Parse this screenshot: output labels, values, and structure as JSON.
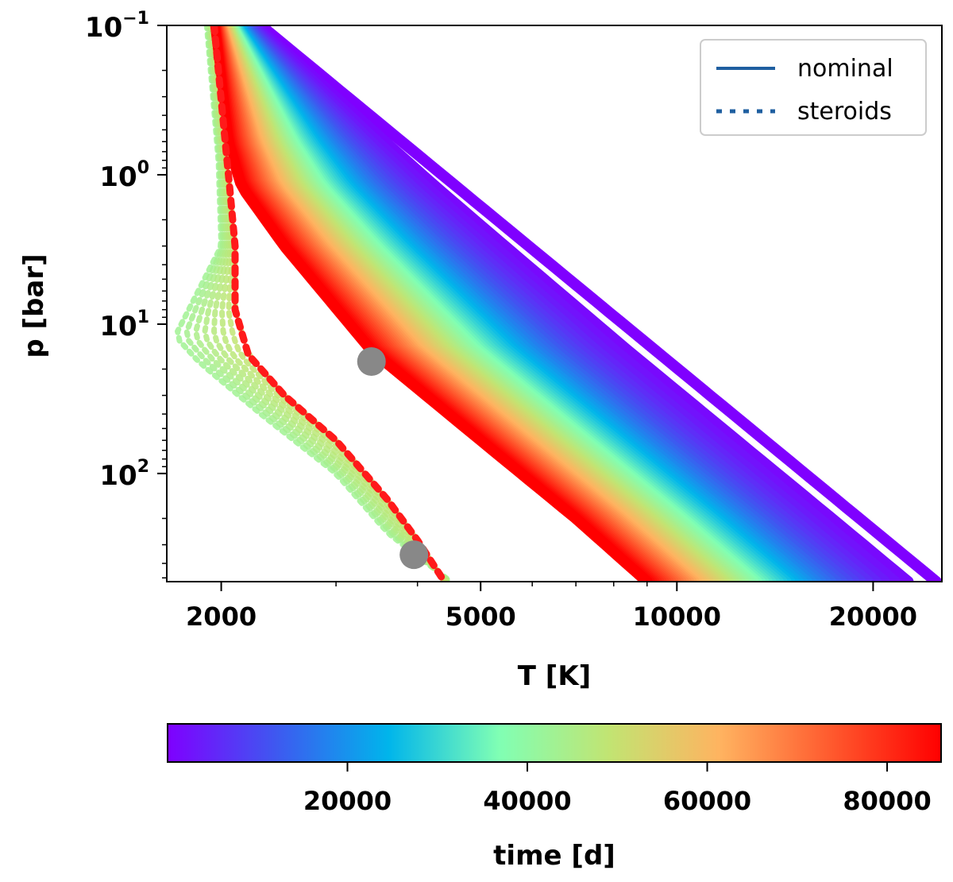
{
  "chart_data": {
    "type": "line",
    "xscale": "log",
    "yscale": "log",
    "xlabel": "T [K]",
    "ylabel": "p [bar]",
    "xlim": [
      1650,
      25500
    ],
    "ylim": [
      0.1,
      530
    ],
    "y_inverted": true,
    "x_ticks": [
      2000,
      5000,
      10000,
      20000
    ],
    "x_tick_labels": [
      "2000",
      "5000",
      "10000",
      "20000"
    ],
    "y_ticks": [
      0.1,
      1,
      10,
      100
    ],
    "y_tick_labels": [
      {
        "base": "10",
        "exp": "−1"
      },
      {
        "base": "10",
        "exp": "0"
      },
      {
        "base": "10",
        "exp": "1"
      },
      {
        "base": "10",
        "exp": "2"
      }
    ],
    "legend": {
      "position": "top-right",
      "entries": [
        {
          "label": "nominal",
          "style": "solid",
          "color": "#1f5fa0"
        },
        {
          "label": "steroids",
          "style": "dotted",
          "color": "#1f5fa0"
        }
      ]
    },
    "series": {
      "nominal_earliest": {
        "name": "nominal t=0",
        "color": "#7f00ff",
        "points": [
          [
            2300,
            0.1
          ],
          [
            25000,
            530
          ]
        ]
      },
      "nominal_latest": {
        "name": "nominal t=85000 d",
        "color": "#ff0000",
        "points": [
          [
            1950,
            0.1
          ],
          [
            2050,
            0.6
          ],
          [
            2150,
            1.2
          ],
          [
            2500,
            3
          ],
          [
            3400,
            15
          ],
          [
            5000,
            60
          ],
          [
            7000,
            200
          ],
          [
            9000,
            530
          ]
        ]
      },
      "steroids_latest": {
        "name": "steroids t=85000 d",
        "color": "#ff1a1a",
        "points": [
          [
            1950,
            0.1
          ],
          [
            2020,
            0.5
          ],
          [
            2060,
            1.2
          ],
          [
            2100,
            3
          ],
          [
            2100,
            8
          ],
          [
            2200,
            16
          ],
          [
            2500,
            30
          ],
          [
            3000,
            60
          ],
          [
            3600,
            150
          ],
          [
            4000,
            280
          ],
          [
            4400,
            530
          ]
        ]
      },
      "steroids_green": {
        "name": "steroids t≈45000 d",
        "color": "#7fffa0",
        "points": [
          [
            1900,
            0.1
          ],
          [
            1980,
            0.8
          ],
          [
            2000,
            3
          ],
          [
            1700,
            12
          ],
          [
            1850,
            18
          ],
          [
            2300,
            40
          ],
          [
            3000,
            100
          ],
          [
            3600,
            250
          ],
          [
            4500,
            530
          ]
        ]
      }
    },
    "markers": [
      {
        "label": "",
        "T": 3400,
        "p": 17.8,
        "color": "#888888"
      },
      {
        "label": "",
        "T": 3950,
        "p": 350,
        "color": "#888888"
      }
    ],
    "colorbar": {
      "label": "time [d]",
      "range": [
        0,
        86000
      ],
      "ticks": [
        20000,
        40000,
        60000,
        80000
      ],
      "tick_labels": [
        "20000",
        "40000",
        "60000",
        "80000"
      ],
      "colormap": [
        "#7f00ff",
        "#3d5af0",
        "#00b5eb",
        "#80ffb4",
        "#c2e472",
        "#ffb360",
        "#ff5a2e",
        "#ff0000"
      ]
    }
  }
}
